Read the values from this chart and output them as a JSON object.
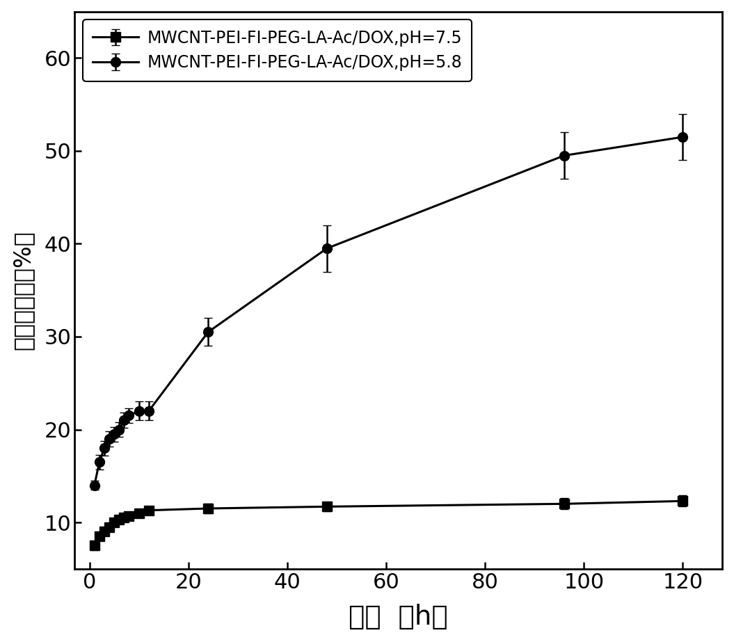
{
  "title": "",
  "xlabel": "时间  （h）",
  "ylabel": "药物释放率（%）",
  "xlim": [
    -3,
    128
  ],
  "ylim": [
    5,
    65
  ],
  "xticks": [
    0,
    20,
    40,
    60,
    80,
    100,
    120
  ],
  "yticks": [
    10,
    20,
    30,
    40,
    50,
    60
  ],
  "series1_label": "MWCNT-PEI-FI-PEG-LA-Ac/DOX,pH=7.5",
  "series1_x": [
    1,
    2,
    3,
    4,
    5,
    6,
    7,
    8,
    10,
    12,
    24,
    48,
    96,
    120
  ],
  "series1_y": [
    7.5,
    8.5,
    9.0,
    9.5,
    10.0,
    10.3,
    10.5,
    10.7,
    11.0,
    11.3,
    11.5,
    11.7,
    12.0,
    12.3
  ],
  "series1_yerr": [
    0.5,
    0.4,
    0.4,
    0.4,
    0.4,
    0.4,
    0.4,
    0.4,
    0.4,
    0.4,
    0.5,
    0.5,
    0.6,
    0.6
  ],
  "series1_marker": "s",
  "series2_label": "MWCNT-PEI-FI-PEG-LA-Ac/DOX,pH=5.8",
  "series2_x": [
    1,
    2,
    3,
    4,
    5,
    6,
    7,
    8,
    10,
    12,
    24,
    48,
    96,
    120
  ],
  "series2_y": [
    14.0,
    16.5,
    18.0,
    19.0,
    19.5,
    20.0,
    21.0,
    21.5,
    22.0,
    22.0,
    30.5,
    39.5,
    49.5,
    51.5
  ],
  "series2_yerr": [
    0.5,
    0.8,
    0.8,
    0.8,
    0.8,
    0.8,
    0.8,
    0.8,
    1.0,
    1.0,
    1.5,
    2.5,
    2.5,
    2.5
  ],
  "series2_marker": "o",
  "line_color": "#000000",
  "marker_facecolor": "#000000",
  "marker_size": 10,
  "linewidth": 2.2,
  "capsize": 4,
  "elinewidth": 1.8
}
